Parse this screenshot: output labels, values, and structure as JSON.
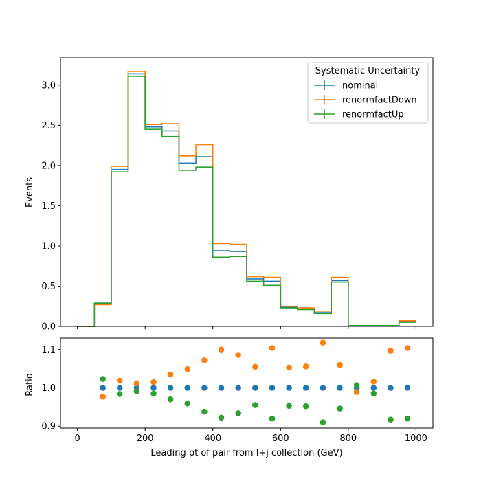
{
  "chart_data": [
    {
      "type": "line",
      "drawstyle": "steps",
      "xlabel": "",
      "ylabel": "Events",
      "xlim": [
        -50,
        1050
      ],
      "ylim": [
        0,
        3.34
      ],
      "x_ticks": [
        0,
        200,
        400,
        600,
        800,
        1000
      ],
      "y_ticks": [
        "0.0",
        "0.5",
        "1.0",
        "1.5",
        "2.0",
        "2.5",
        "3.0"
      ],
      "bin_edges": [
        0,
        50,
        100,
        150,
        200,
        250,
        300,
        350,
        400,
        450,
        500,
        550,
        600,
        650,
        700,
        750,
        800,
        850,
        900,
        950,
        1000
      ],
      "legend": {
        "title": "Systematic Uncertainty",
        "position": "top-right"
      },
      "series": [
        {
          "name": "nominal",
          "color": "#1f77b4",
          "values": [
            0.0,
            0.28,
            1.95,
            3.14,
            2.48,
            2.43,
            2.03,
            2.11,
            0.94,
            0.93,
            0.59,
            0.56,
            0.24,
            0.22,
            0.17,
            0.57,
            0.01,
            0.01,
            0.01,
            0.06
          ]
        },
        {
          "name": "renormfactDown",
          "color": "#ff7f0e",
          "values": [
            0.0,
            0.27,
            1.99,
            3.17,
            2.51,
            2.52,
            2.12,
            2.26,
            1.03,
            1.02,
            0.62,
            0.61,
            0.25,
            0.23,
            0.19,
            0.61,
            0.01,
            0.01,
            0.01,
            0.07
          ]
        },
        {
          "name": "renormfactUp",
          "color": "#2ca02c",
          "values": [
            0.0,
            0.29,
            1.92,
            3.11,
            2.45,
            2.36,
            1.94,
            1.98,
            0.86,
            0.87,
            0.56,
            0.51,
            0.23,
            0.21,
            0.16,
            0.55,
            0.01,
            0.01,
            0.01,
            0.05
          ]
        }
      ]
    },
    {
      "type": "scatter",
      "xlabel": "Leading pt of pair from l+j collection (GeV)",
      "ylabel": "Ratio",
      "xlim": [
        -50,
        1050
      ],
      "ylim": [
        0.895,
        1.13
      ],
      "x_ticks": [
        0,
        200,
        400,
        600,
        800,
        1000
      ],
      "y_ticks": [
        "0.9",
        "1.0",
        "1.1"
      ],
      "reference_line": 1.0,
      "x": [
        75,
        125,
        175,
        225,
        275,
        325,
        375,
        425,
        475,
        525,
        575,
        625,
        675,
        725,
        775,
        825,
        875,
        925,
        975
      ],
      "series": [
        {
          "name": "nominal",
          "color": "#1f77b4",
          "values": [
            1.0,
            1.0,
            1.0,
            1.0,
            1.0,
            1.0,
            1.0,
            1.0,
            1.0,
            1.0,
            1.0,
            1.0,
            1.0,
            1.0,
            1.0,
            1.0,
            1.0,
            1.0,
            1.0
          ]
        },
        {
          "name": "renormfactDown",
          "color": "#ff7f0e",
          "values": [
            0.977,
            1.019,
            1.012,
            1.015,
            1.035,
            1.049,
            1.072,
            1.1,
            1.086,
            1.055,
            1.104,
            1.053,
            1.056,
            1.118,
            1.06,
            0.989,
            1.016,
            1.097,
            1.104
          ]
        },
        {
          "name": "renormfactUp",
          "color": "#2ca02c",
          "values": [
            1.023,
            0.984,
            0.991,
            0.985,
            0.97,
            0.959,
            0.938,
            0.922,
            0.934,
            0.955,
            0.92,
            0.953,
            0.952,
            0.91,
            0.946,
            1.007,
            0.985,
            0.917,
            0.92
          ]
        }
      ]
    }
  ]
}
